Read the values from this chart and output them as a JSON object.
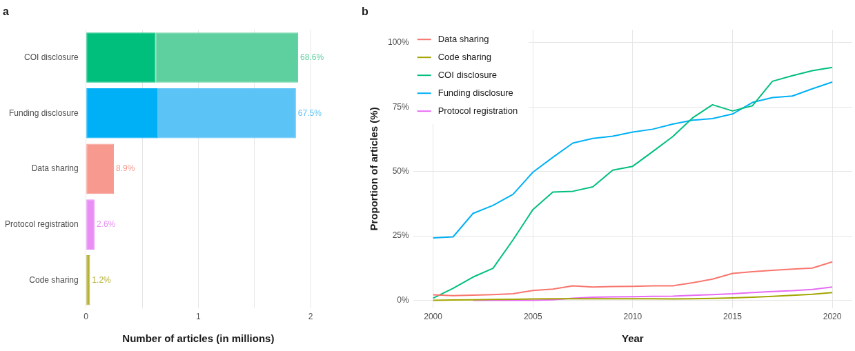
{
  "chart_data": [
    {
      "type": "bar",
      "title": "a",
      "orientation": "horizontal",
      "stacked": true,
      "xlabel": "Number of articles (in millions)",
      "categories": [
        "COI disclosure",
        "Funding disclosure",
        "Data sharing",
        "Protocol registration",
        "Code sharing"
      ],
      "series": [
        {
          "colors": [
            "#00bf7d",
            "#00b0f6",
            "#f8998f",
            "#e88ef5",
            "#b5b23a"
          ],
          "values": [
            0.62,
            0.635,
            0,
            0,
            0
          ]
        },
        {
          "colors": [
            "#5ecf9e",
            "#5cc3f7",
            "#f8998f",
            "#e88ef5",
            "#b5b23a"
          ],
          "values": [
            1.27,
            1.235,
            0.248,
            0.075,
            0.035
          ]
        }
      ],
      "annotations": [
        {
          "text": "68.6%",
          "x": 1.89,
          "y": "COI disclosure"
        },
        {
          "text": "67.5%",
          "x": 1.87,
          "y": "Funding disclosure"
        },
        {
          "text": "8.9%",
          "x": 0.248,
          "y": "Data sharing"
        },
        {
          "text": "2.6%",
          "x": 0.075,
          "y": "Protocol registration"
        },
        {
          "text": "1.2%",
          "x": 0.035,
          "y": "Code sharing"
        }
      ],
      "xlim": [
        0,
        2
      ],
      "xticks": [
        0,
        {
          "value": 0.5,
          "label": null
        },
        1,
        {
          "value": 1.5,
          "label": null
        },
        2
      ],
      "grid": "x",
      "legend": false
    },
    {
      "type": "line",
      "title": "b",
      "xlabel": "Year",
      "ylabel": "Proportion of articles (%)",
      "x": [
        2000,
        2001,
        2002,
        2003,
        2004,
        2005,
        2006,
        2007,
        2008,
        2009,
        2010,
        2011,
        2012,
        2013,
        2014,
        2015,
        2016,
        2017,
        2018,
        2019,
        2020
      ],
      "series": [
        {
          "name": "Data sharing",
          "color": "#f8766d",
          "values": [
            2.1,
            1.8,
            2.0,
            2.2,
            2.5,
            3.8,
            4.3,
            5.6,
            5.1,
            5.3,
            5.4,
            5.6,
            5.6,
            6.8,
            8.2,
            10.4,
            11.1,
            11.6,
            12.1,
            12.5,
            14.9
          ]
        },
        {
          "name": "Code sharing",
          "color": "#a3a500",
          "values": [
            0.0,
            0.1,
            0.2,
            0.3,
            0.4,
            0.5,
            0.6,
            0.6,
            0.6,
            0.6,
            0.6,
            0.6,
            0.5,
            0.6,
            0.7,
            0.9,
            1.2,
            1.5,
            1.9,
            2.3,
            3.0
          ]
        },
        {
          "name": "COI disclosure",
          "color": "#00bf7d",
          "values": [
            0.8,
            4.6,
            9.0,
            12.4,
            23.4,
            35.2,
            42.0,
            42.3,
            44.0,
            50.5,
            52.0,
            57.7,
            63.5,
            70.8,
            75.9,
            73.5,
            75.5,
            85.0,
            87.2,
            89.1,
            90.4
          ]
        },
        {
          "name": "Funding disclosure",
          "color": "#00b0f6",
          "values": [
            24.2,
            24.6,
            33.7,
            36.8,
            41.1,
            49.7,
            55.5,
            61.0,
            62.8,
            63.7,
            65.3,
            66.4,
            68.4,
            69.9,
            70.5,
            72.3,
            76.8,
            78.7,
            79.3,
            82.1,
            84.7
          ]
        },
        {
          "name": "Protocol registration",
          "color": "#e76bf3",
          "values": [
            null,
            null,
            0.0,
            0.0,
            0.0,
            0.0,
            0.2,
            0.8,
            1.2,
            1.3,
            1.4,
            1.5,
            1.6,
            1.9,
            2.2,
            2.5,
            3.0,
            3.4,
            3.7,
            4.2,
            5.1
          ]
        }
      ],
      "xlim": [
        1999,
        2021
      ],
      "xticks": [
        2000,
        2005,
        2010,
        2015,
        2020
      ],
      "ylim": [
        -3,
        105
      ],
      "yticks": [
        {
          "value": 0,
          "label": "0%"
        },
        {
          "value": 25,
          "label": "25%"
        },
        {
          "value": 50,
          "label": "50%"
        },
        {
          "value": 75,
          "label": "75%"
        },
        {
          "value": 100,
          "label": "100%"
        }
      ],
      "grid": true,
      "legend": "top left",
      "marker": "none",
      "line_style": "solid"
    }
  ]
}
